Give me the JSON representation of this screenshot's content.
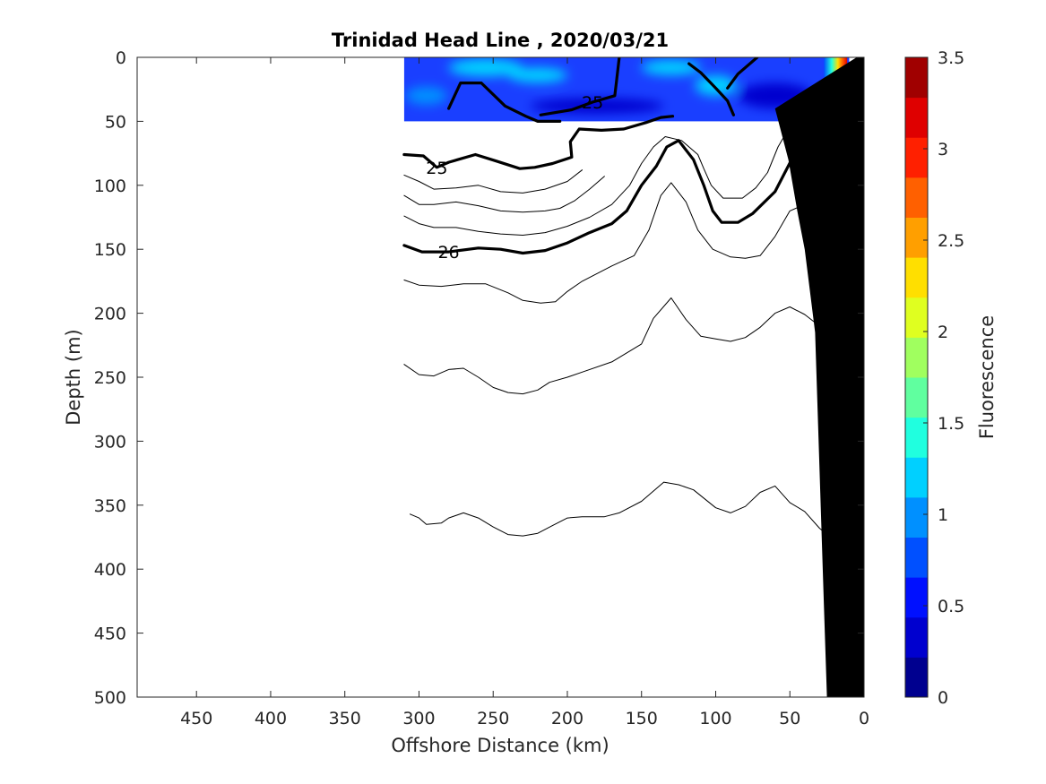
{
  "chart_data": {
    "type": "contour",
    "title": "Trinidad Head Line , 2020/03/21",
    "xlabel": "Offshore Distance (km)",
    "ylabel": "Depth (m)",
    "xlim": [
      490,
      0
    ],
    "ylim": [
      500,
      0
    ],
    "x_reversed": true,
    "y_reversed": true,
    "xticks": [
      450,
      400,
      350,
      300,
      250,
      200,
      150,
      100,
      50,
      0
    ],
    "yticks": [
      0,
      50,
      100,
      150,
      200,
      250,
      300,
      350,
      400,
      450,
      500
    ],
    "colorbar": {
      "label": "Fluorescence",
      "range": [
        0,
        3.5
      ],
      "ticks": [
        0,
        0.5,
        1,
        1.5,
        2,
        2.5,
        3,
        3.5
      ],
      "colors": [
        "#00008f",
        "#0000cf",
        "#0010ff",
        "#0050ff",
        "#0090ff",
        "#00d0ff",
        "#20ffdf",
        "#60ff9f",
        "#a0ff5f",
        "#dfff20",
        "#ffdf00",
        "#ff9f00",
        "#ff6000",
        "#ff2000",
        "#df0000",
        "#a00000"
      ]
    },
    "fluorescence_band": {
      "depth_range_m": [
        0,
        50
      ],
      "distance_range_km": [
        310,
        10
      ],
      "background": "#1a3fff",
      "patches": [
        {
          "x": 255,
          "y": 8,
          "rx": 25,
          "ry": 7,
          "value": 1.3
        },
        {
          "x": 220,
          "y": 14,
          "rx": 20,
          "ry": 6,
          "value": 1.3
        },
        {
          "x": 130,
          "y": 8,
          "rx": 20,
          "ry": 6,
          "value": 1.2
        },
        {
          "x": 100,
          "y": 22,
          "rx": 14,
          "ry": 8,
          "value": 1.3
        },
        {
          "x": 295,
          "y": 30,
          "rx": 14,
          "ry": 7,
          "value": 1.0
        },
        {
          "x": 180,
          "y": 38,
          "rx": 45,
          "ry": 6,
          "value": 0.4
        },
        {
          "x": 60,
          "y": 30,
          "rx": 25,
          "ry": 10,
          "value": 0.4
        }
      ],
      "nearshore_gradient": [
        {
          "x": 27,
          "value": 0.8
        },
        {
          "x": 22,
          "value": 1.4
        },
        {
          "x": 18,
          "value": 2.3
        },
        {
          "x": 15,
          "value": 2.8
        },
        {
          "x": 12,
          "value": 3.2
        }
      ]
    },
    "contours": [
      {
        "level": 25,
        "bold": true,
        "label": "25",
        "points": [
          [
            310,
            76
          ],
          [
            297,
            77
          ],
          [
            288,
            86
          ],
          [
            280,
            82
          ],
          [
            262,
            76
          ],
          [
            248,
            81
          ],
          [
            232,
            87
          ],
          [
            222,
            86
          ],
          [
            210,
            83
          ],
          [
            197,
            78
          ],
          [
            198,
            66
          ],
          [
            192,
            56
          ],
          [
            177,
            57
          ],
          [
            162,
            56
          ],
          [
            147,
            51
          ],
          [
            137,
            47
          ],
          [
            129,
            46
          ]
        ]
      },
      {
        "level": 25,
        "bold": true,
        "points": [
          [
            280,
            40
          ],
          [
            272,
            20
          ],
          [
            258,
            20
          ],
          [
            242,
            38
          ],
          [
            228,
            46
          ],
          [
            220,
            50
          ],
          [
            205,
            50
          ]
        ]
      },
      {
        "level": 25,
        "bold": true,
        "label": "25",
        "points": [
          [
            218,
            45
          ],
          [
            197,
            41
          ],
          [
            183,
            35
          ],
          [
            168,
            30
          ],
          [
            167,
            20
          ],
          [
            165,
            0
          ]
        ]
      },
      {
        "level": 25,
        "bold": true,
        "points": [
          [
            118,
            5
          ],
          [
            110,
            12
          ],
          [
            100,
            24
          ],
          [
            92,
            34
          ],
          [
            88,
            45
          ]
        ]
      },
      {
        "level": 25,
        "bold": true,
        "points": [
          [
            72,
            0
          ],
          [
            85,
            13
          ],
          [
            92,
            24
          ]
        ]
      },
      {
        "level": 26,
        "bold": true,
        "label": "26",
        "points": [
          [
            310,
            147
          ],
          [
            298,
            152
          ],
          [
            280,
            152
          ],
          [
            260,
            149
          ],
          [
            245,
            150
          ],
          [
            230,
            153
          ],
          [
            215,
            151
          ],
          [
            200,
            145
          ],
          [
            185,
            137
          ],
          [
            170,
            130
          ],
          [
            160,
            120
          ],
          [
            150,
            100
          ],
          [
            140,
            85
          ],
          [
            133,
            70
          ],
          [
            125,
            65
          ],
          [
            115,
            80
          ],
          [
            108,
            100
          ],
          [
            102,
            120
          ],
          [
            96,
            129
          ],
          [
            85,
            129
          ],
          [
            75,
            122
          ],
          [
            60,
            105
          ],
          [
            48,
            78
          ],
          [
            40,
            57
          ],
          [
            35,
            48
          ],
          [
            25,
            48
          ],
          [
            20,
            60
          ],
          [
            15,
            72
          ],
          [
            10,
            76
          ]
        ]
      },
      {
        "level": 25.5,
        "bold": false,
        "points": [
          [
            310,
            92
          ],
          [
            300,
            97
          ],
          [
            290,
            103
          ],
          [
            275,
            102
          ],
          [
            260,
            100
          ],
          [
            245,
            105
          ],
          [
            230,
            106
          ],
          [
            215,
            103
          ],
          [
            200,
            97
          ],
          [
            190,
            88
          ]
        ]
      },
      {
        "level": 25.5,
        "bold": false,
        "points": [
          [
            310,
            108
          ],
          [
            300,
            115
          ],
          [
            290,
            115
          ],
          [
            275,
            113
          ],
          [
            260,
            116
          ],
          [
            245,
            120
          ],
          [
            230,
            121
          ],
          [
            215,
            120
          ],
          [
            205,
            118
          ],
          [
            195,
            112
          ],
          [
            185,
            103
          ],
          [
            175,
            93
          ]
        ]
      },
      {
        "level": 25.5,
        "bold": false,
        "points": [
          [
            310,
            124
          ],
          [
            300,
            130
          ],
          [
            290,
            133
          ],
          [
            275,
            133
          ],
          [
            260,
            136
          ],
          [
            245,
            138
          ],
          [
            230,
            139
          ],
          [
            215,
            137
          ],
          [
            200,
            132
          ],
          [
            185,
            125
          ],
          [
            170,
            115
          ],
          [
            158,
            100
          ],
          [
            150,
            83
          ],
          [
            142,
            70
          ],
          [
            134,
            62
          ],
          [
            123,
            65
          ],
          [
            112,
            76
          ],
          [
            108,
            87
          ],
          [
            103,
            100
          ],
          [
            95,
            110
          ],
          [
            82,
            110
          ],
          [
            73,
            102
          ],
          [
            65,
            90
          ],
          [
            58,
            70
          ],
          [
            48,
            50
          ]
        ]
      },
      {
        "level": 26.3,
        "bold": false,
        "points": [
          [
            310,
            174
          ],
          [
            300,
            178
          ],
          [
            285,
            179
          ],
          [
            270,
            177
          ],
          [
            255,
            177
          ],
          [
            240,
            184
          ],
          [
            230,
            190
          ],
          [
            218,
            192
          ],
          [
            208,
            191
          ],
          [
            200,
            183
          ],
          [
            190,
            175
          ],
          [
            170,
            163
          ],
          [
            155,
            155
          ],
          [
            145,
            135
          ],
          [
            137,
            108
          ],
          [
            130,
            98
          ],
          [
            120,
            113
          ],
          [
            112,
            135
          ],
          [
            102,
            150
          ],
          [
            90,
            156
          ],
          [
            80,
            157
          ],
          [
            70,
            155
          ],
          [
            60,
            140
          ],
          [
            50,
            120
          ],
          [
            40,
            115
          ],
          [
            30,
            120
          ],
          [
            15,
            113
          ],
          [
            8,
            110
          ]
        ]
      },
      {
        "level": 26.5,
        "bold": false,
        "points": [
          [
            310,
            240
          ],
          [
            300,
            248
          ],
          [
            290,
            249
          ],
          [
            280,
            244
          ],
          [
            270,
            243
          ],
          [
            260,
            250
          ],
          [
            250,
            258
          ],
          [
            240,
            262
          ],
          [
            230,
            263
          ],
          [
            220,
            260
          ],
          [
            212,
            254
          ],
          [
            200,
            250
          ],
          [
            190,
            246
          ],
          [
            170,
            238
          ],
          [
            150,
            224
          ],
          [
            142,
            204
          ],
          [
            130,
            188
          ],
          [
            120,
            205
          ],
          [
            110,
            218
          ],
          [
            100,
            220
          ],
          [
            90,
            222
          ],
          [
            80,
            219
          ],
          [
            70,
            211
          ],
          [
            60,
            200
          ],
          [
            50,
            195
          ],
          [
            40,
            201
          ],
          [
            30,
            210
          ],
          [
            20,
            203
          ],
          [
            15,
            197
          ],
          [
            12,
            190
          ]
        ]
      },
      {
        "level": 26.8,
        "bold": false,
        "points": [
          [
            306,
            357
          ],
          [
            300,
            360
          ],
          [
            295,
            365
          ],
          [
            285,
            364
          ],
          [
            280,
            360
          ],
          [
            270,
            356
          ],
          [
            260,
            360
          ],
          [
            250,
            367
          ],
          [
            240,
            373
          ],
          [
            230,
            374
          ],
          [
            220,
            372
          ],
          [
            210,
            366
          ],
          [
            200,
            360
          ],
          [
            190,
            359
          ],
          [
            175,
            359
          ],
          [
            165,
            356
          ],
          [
            150,
            347
          ],
          [
            135,
            332
          ],
          [
            125,
            334
          ],
          [
            115,
            338
          ],
          [
            100,
            352
          ],
          [
            90,
            356
          ],
          [
            80,
            351
          ],
          [
            70,
            340
          ],
          [
            60,
            335
          ],
          [
            50,
            348
          ],
          [
            40,
            355
          ],
          [
            30,
            368
          ],
          [
            15,
            383
          ]
        ]
      }
    ],
    "bathymetry": {
      "color": "#000000",
      "points": [
        [
          0,
          0
        ],
        [
          0,
          500
        ],
        [
          25,
          500
        ],
        [
          27,
          430
        ],
        [
          33,
          215
        ],
        [
          40,
          150
        ],
        [
          45,
          120
        ],
        [
          51,
          80
        ],
        [
          60,
          40
        ],
        [
          5,
          0
        ]
      ]
    }
  }
}
